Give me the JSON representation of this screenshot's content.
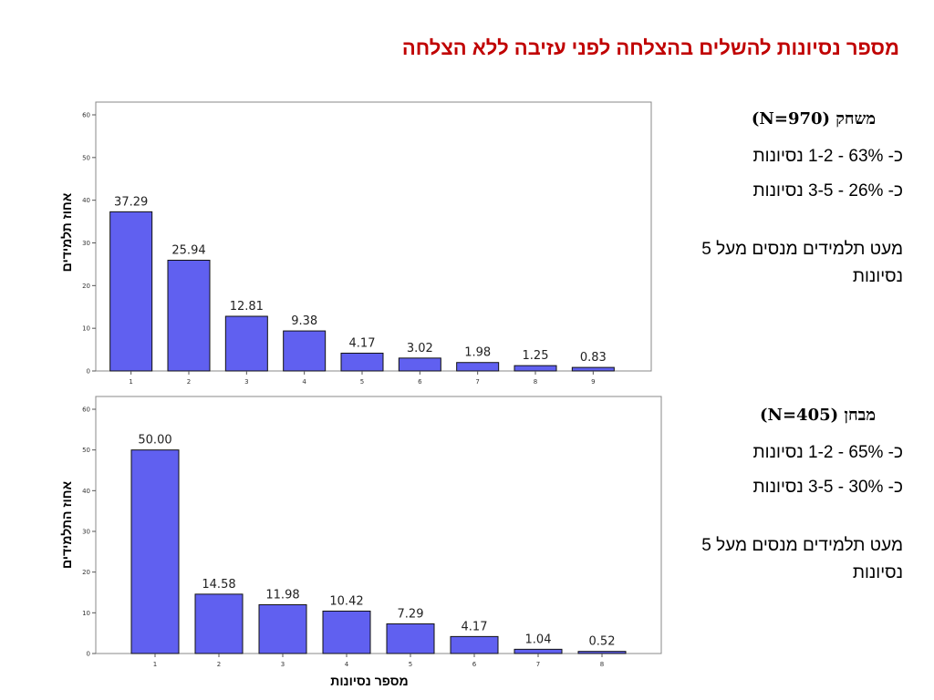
{
  "title": "מספר נסיונות להשלים בהצלחה לפני עזיבה ללא הצלחה",
  "panels": {
    "game": {
      "heading": "משחק (N=970)",
      "stat1": "כ- 63% - 1-2 נסיונות",
      "stat2": "כ- 26% - 3-5 נסיונות",
      "note": "מעט תלמידים מנסים מעל 5 נסיונות"
    },
    "exam": {
      "heading": "מבחן (N=405)",
      "stat1": "כ- 65% - 1-2 נסיונות",
      "stat2": "כ- 30% - 3-5 נסיונות",
      "note": "מעט תלמידים מנסים מעל 5 נסיונות"
    }
  },
  "chart_data": [
    {
      "type": "bar",
      "categories": [
        "1",
        "2",
        "3",
        "4",
        "5",
        "6",
        "7",
        "8",
        "9"
      ],
      "values": [
        37.29,
        25.94,
        12.81,
        9.38,
        4.17,
        3.02,
        1.98,
        1.25,
        0.83
      ],
      "value_labels": [
        "37.29",
        "25.94",
        "12.81",
        "9.38",
        "4.17",
        "3.02",
        "1.98",
        "1.25",
        "0.83"
      ],
      "ylabel": "אחוז תלמידים",
      "xlabel": "",
      "ylim": [
        0,
        60
      ],
      "yticks": [
        0,
        10,
        20,
        30,
        40,
        50,
        60
      ],
      "bar_color": "#6060f0",
      "grid": false
    },
    {
      "type": "bar",
      "categories": [
        "1",
        "2",
        "3",
        "4",
        "5",
        "6",
        "7",
        "8"
      ],
      "values": [
        50.0,
        14.58,
        11.98,
        10.42,
        7.29,
        4.17,
        1.04,
        0.52
      ],
      "value_labels": [
        "50.00",
        "14.58",
        "11.98",
        "10.42",
        "7.29",
        "4.17",
        "1.04",
        "0.52"
      ],
      "ylabel": "אחוז התלמידים",
      "xlabel": "מספר נסיונות",
      "ylim": [
        0,
        60
      ],
      "yticks": [
        0,
        10,
        20,
        30,
        40,
        50,
        60
      ],
      "bar_color": "#6060f0",
      "grid": false
    }
  ]
}
